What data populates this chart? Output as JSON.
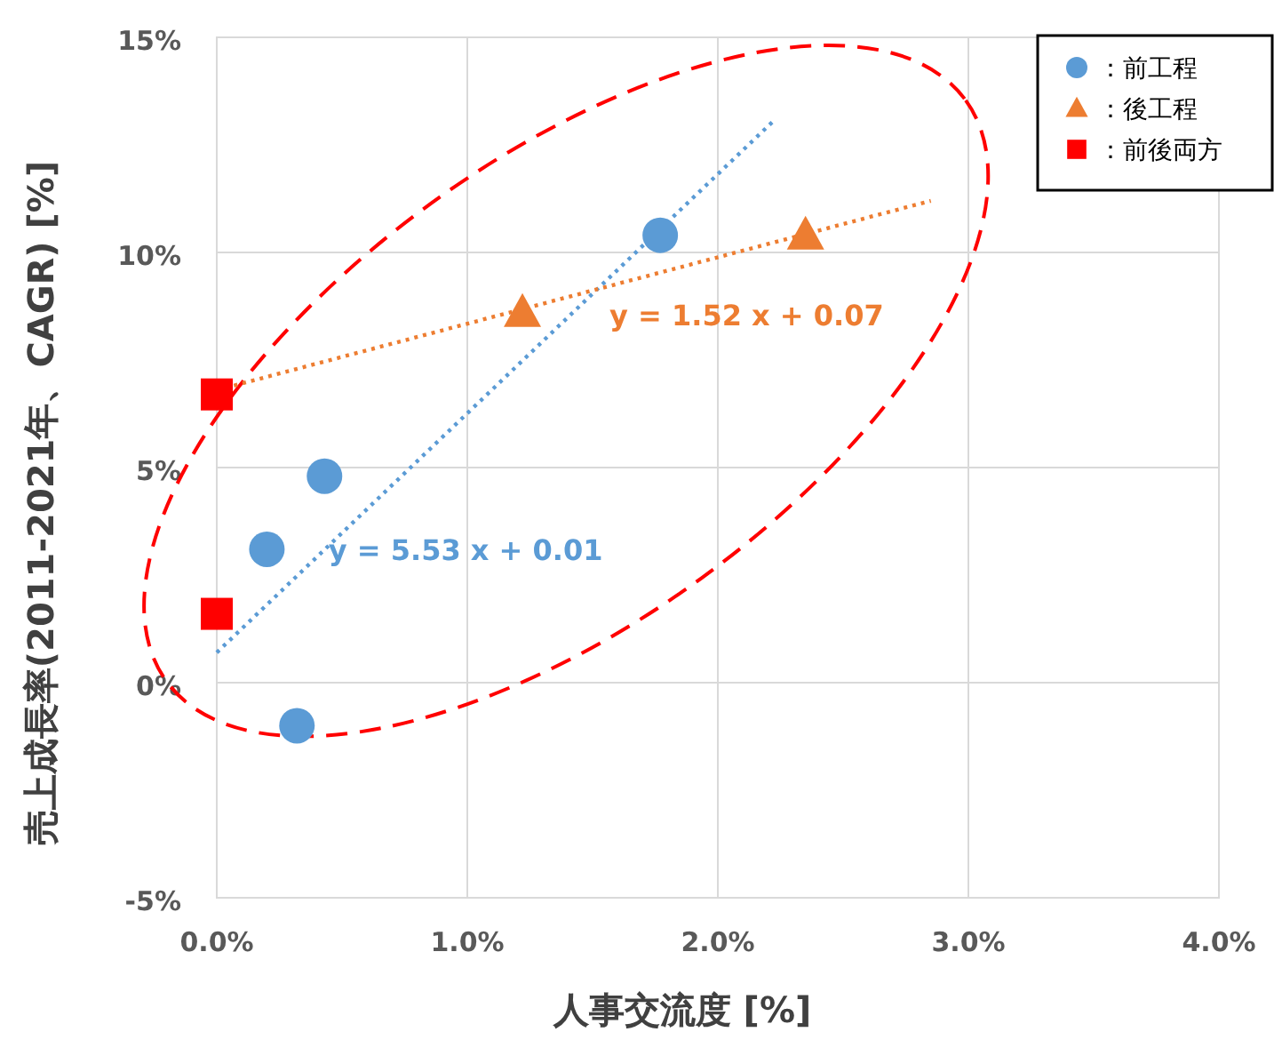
{
  "chart_data": {
    "type": "scatter",
    "xlabel": "人事交流度 [%]",
    "ylabel": "売上成長率(2011-2021年、CAGR) [%]",
    "xlim": [
      0,
      4
    ],
    "xticks": [
      {
        "value": 0,
        "label": "0.0%"
      },
      {
        "value": 1,
        "label": "1.0%"
      },
      {
        "value": 2,
        "label": "2.0%"
      },
      {
        "value": 3,
        "label": "3.0%"
      },
      {
        "value": 4,
        "label": "4.0%"
      }
    ],
    "ylim": [
      -5,
      15
    ],
    "yticks": [
      {
        "value": -5,
        "label": "-5%"
      },
      {
        "value": 0,
        "label": "0%"
      },
      {
        "value": 5,
        "label": "5%"
      },
      {
        "value": 10,
        "label": "10%"
      },
      {
        "value": 15,
        "label": "15%"
      }
    ],
    "grid": true,
    "legend": "top right",
    "series": [
      {
        "name": "：前工程",
        "marker": "circle",
        "color": "#5b9bd5",
        "x": [
          1.77,
          0.43,
          0.2,
          0.32
        ],
        "values": [
          10.4,
          4.8,
          3.1,
          -1.0
        ]
      },
      {
        "name": "：後工程",
        "marker": "triangle",
        "color": "#ed7d31",
        "x": [
          1.22,
          2.35
        ],
        "values": [
          8.6,
          10.4
        ]
      },
      {
        "name": "：前後両方",
        "marker": "square",
        "color": "#ff0000",
        "x": [
          0,
          0
        ],
        "values": [
          6.7,
          1.6
        ]
      },
      {
        "type": "line",
        "line_style": "dotted",
        "color": "#5b9bd5",
        "x": [
          0,
          2.23
        ],
        "values": [
          0.7,
          13.1
        ]
      },
      {
        "type": "line",
        "line_style": "dotted",
        "color": "#ed7d31",
        "x": [
          0,
          2.85
        ],
        "values": [
          6.8,
          11.2
        ]
      }
    ],
    "annotations": [
      "y = 5.53 x + 0.01",
      "y = 1.52 x + 0.07"
    ]
  }
}
